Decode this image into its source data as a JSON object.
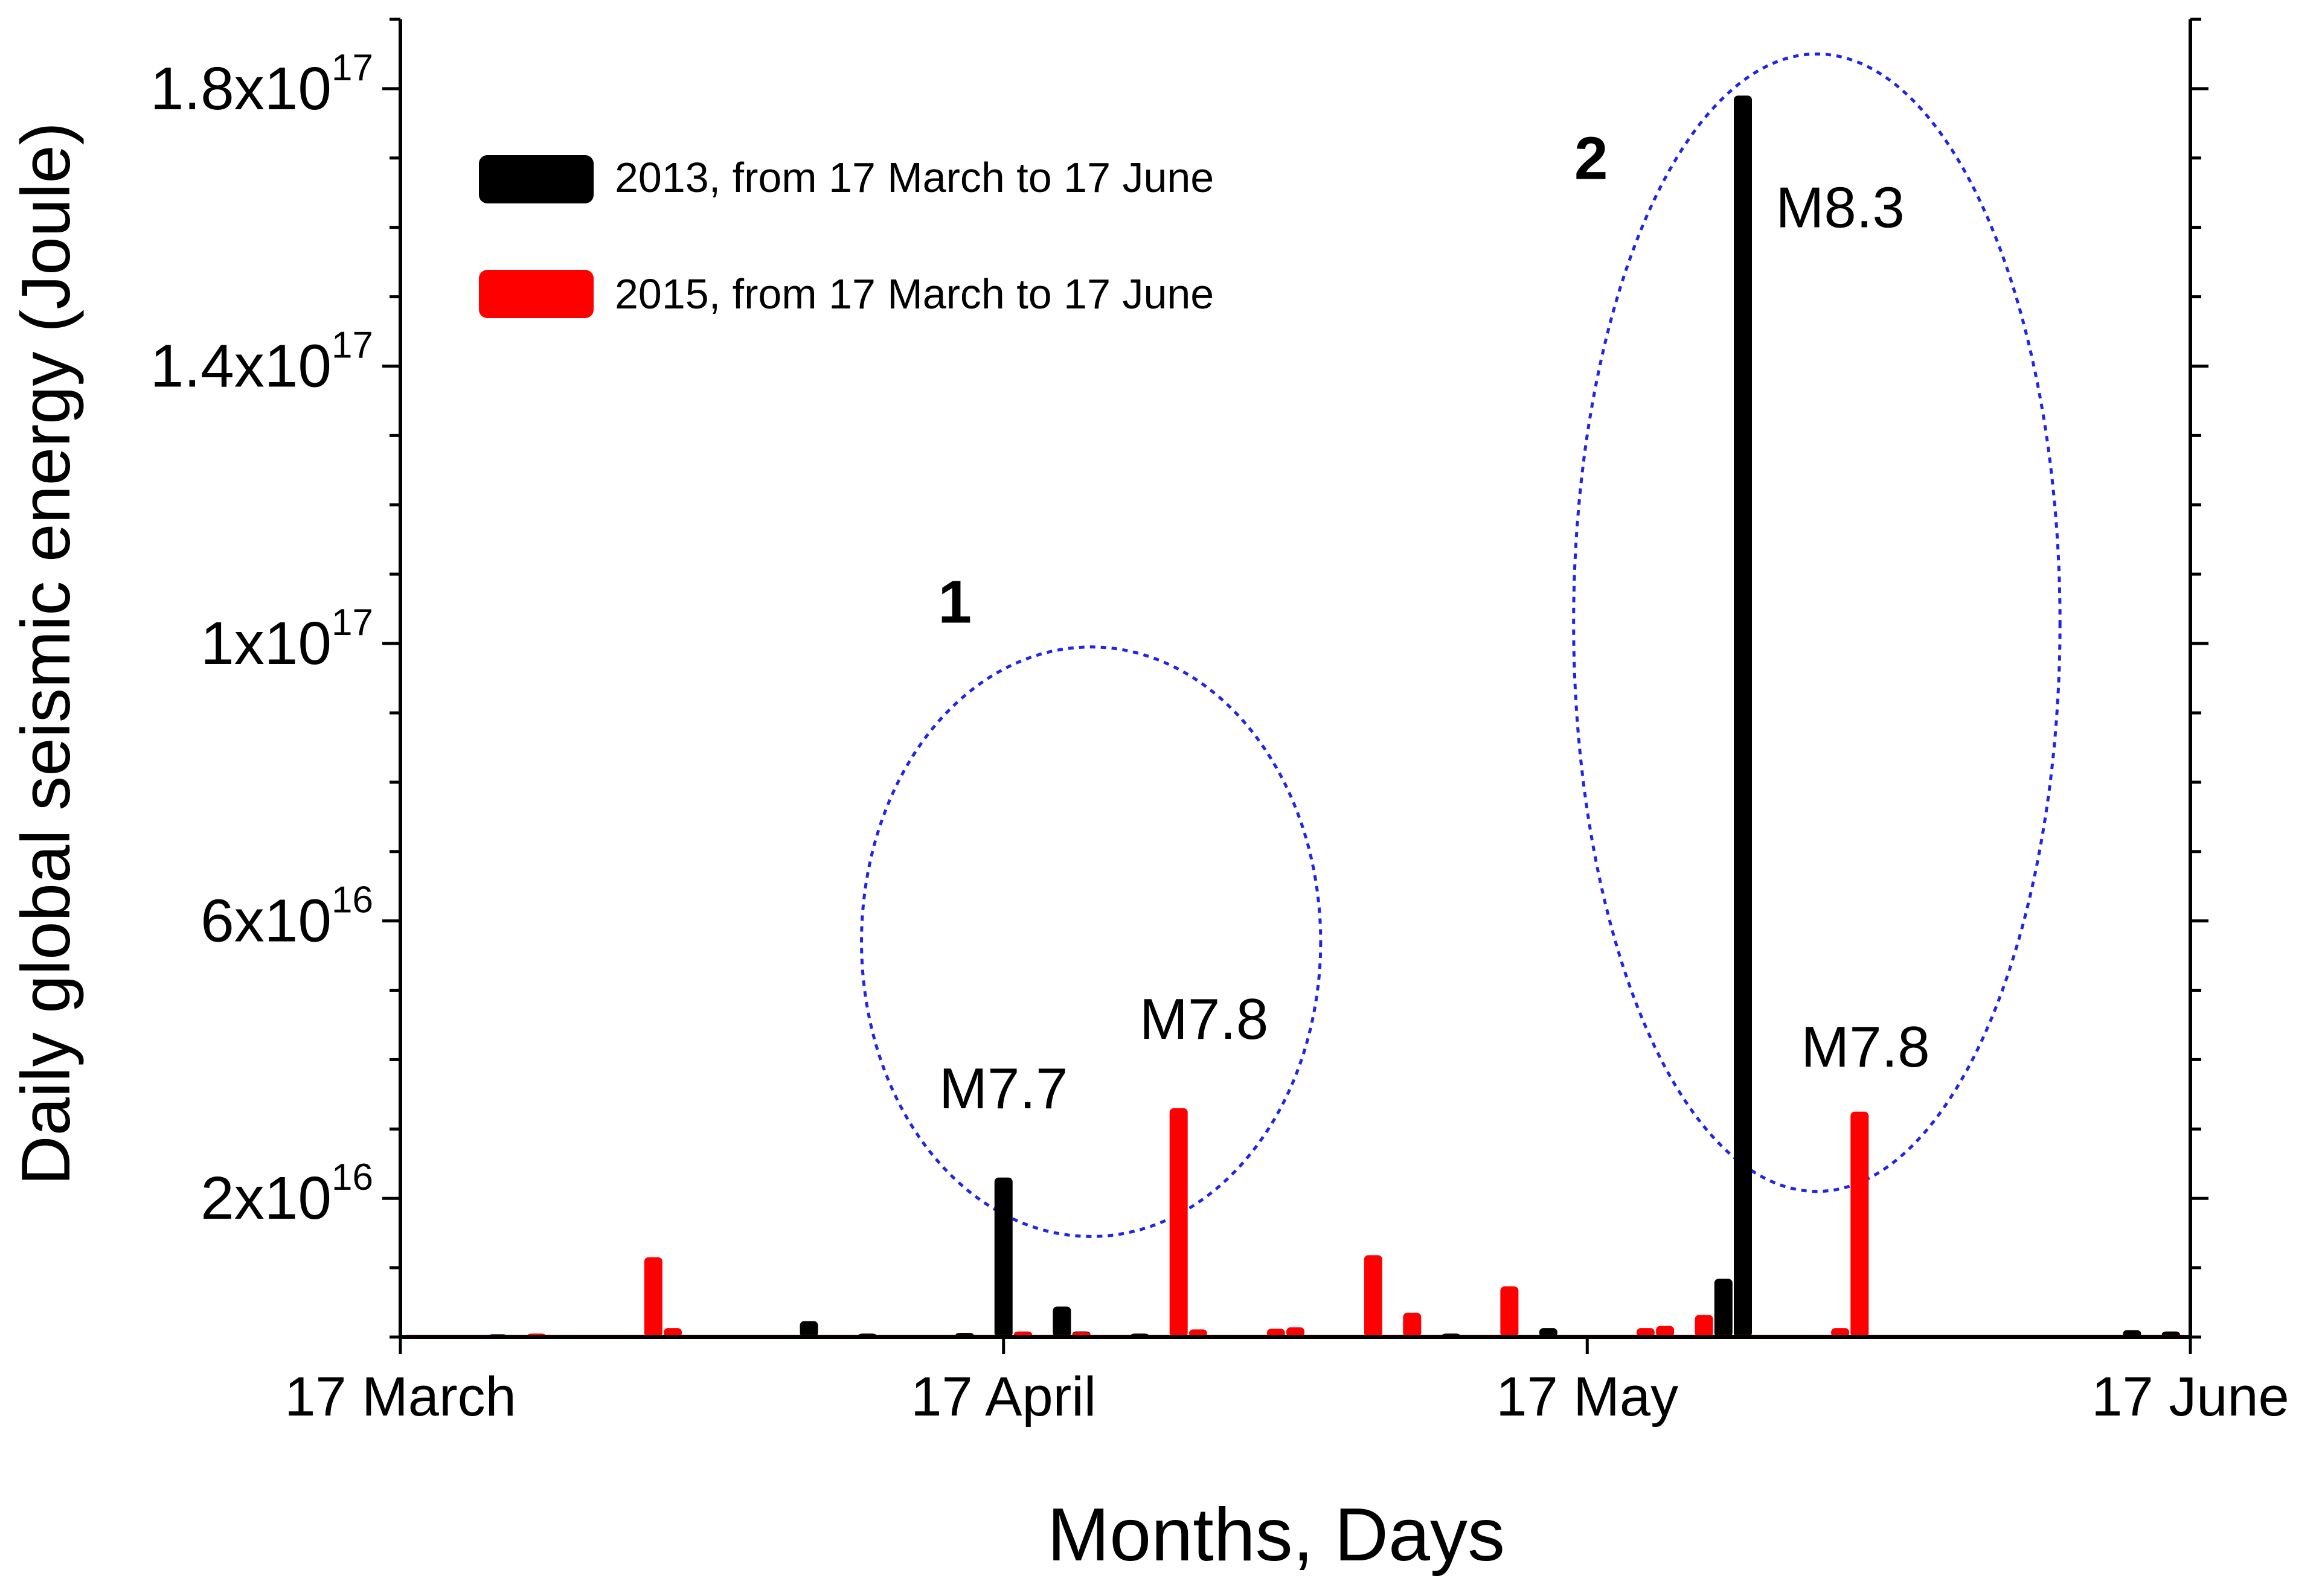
{
  "chart_data": {
    "type": "bar",
    "title": "",
    "xlabel": "Months, Days",
    "ylabel": "Daily global seismic energy (Joule)",
    "x_range_days": [
      0,
      92
    ],
    "ylim": [
      0,
      1.9e+17
    ],
    "x_ticks": [
      {
        "day": 0,
        "label": "17 March"
      },
      {
        "day": 31,
        "label": "17 April"
      },
      {
        "day": 61,
        "label": "17 May"
      },
      {
        "day": 92,
        "label": "17 June"
      }
    ],
    "y_ticks": [
      {
        "value": 2e+16,
        "base": "2x10",
        "exp": "16"
      },
      {
        "value": 6e+16,
        "base": "6x10",
        "exp": "16"
      },
      {
        "value": 1e+17,
        "base": "1x10",
        "exp": "17"
      },
      {
        "value": 1.4e+17,
        "base": "1.4x10",
        "exp": "17"
      },
      {
        "value": 1.8e+17,
        "base": "1.8x10",
        "exp": "17"
      }
    ],
    "baseline_value": 300000000000000.0,
    "series": [
      {
        "name": "2013, from 17 March to 17 June",
        "color": "#000000",
        "points": [
          {
            "day": 5,
            "value": 400000000000000.0
          },
          {
            "day": 8,
            "value": 300000000000000.0
          },
          {
            "day": 21,
            "value": 2300000000000000.0
          },
          {
            "day": 24,
            "value": 500000000000000.0
          },
          {
            "day": 29,
            "value": 600000000000000.0
          },
          {
            "day": 31,
            "value": 2.3e+16
          },
          {
            "day": 34,
            "value": 4400000000000000.0
          },
          {
            "day": 35,
            "value": 800000000000000.0
          },
          {
            "day": 38,
            "value": 500000000000000.0
          },
          {
            "day": 41,
            "value": 400000000000000.0
          },
          {
            "day": 54,
            "value": 500000000000000.0
          },
          {
            "day": 59,
            "value": 1300000000000000.0
          },
          {
            "day": 68,
            "value": 8400000000000000.0
          },
          {
            "day": 69,
            "value": 1.79e+17
          },
          {
            "day": 89,
            "value": 1000000000000000.0
          },
          {
            "day": 91,
            "value": 800000000000000.0
          }
        ]
      },
      {
        "name": "2015, from 17 March to 17 June",
        "color": "#ff0000",
        "points": [
          {
            "day": 7,
            "value": 500000000000000.0
          },
          {
            "day": 13,
            "value": 1.15e+16
          },
          {
            "day": 14,
            "value": 1300000000000000.0
          },
          {
            "day": 32,
            "value": 800000000000000.0
          },
          {
            "day": 35,
            "value": 700000000000000.0
          },
          {
            "day": 40,
            "value": 3.3e+16
          },
          {
            "day": 41,
            "value": 1100000000000000.0
          },
          {
            "day": 45,
            "value": 1200000000000000.0
          },
          {
            "day": 46,
            "value": 1400000000000000.0
          },
          {
            "day": 50,
            "value": 1.18e+16
          },
          {
            "day": 52,
            "value": 3500000000000000.0
          },
          {
            "day": 57,
            "value": 7300000000000000.0
          },
          {
            "day": 64,
            "value": 1300000000000000.0
          },
          {
            "day": 65,
            "value": 1600000000000000.0
          },
          {
            "day": 67,
            "value": 3200000000000000.0
          },
          {
            "day": 74,
            "value": 1300000000000000.0
          },
          {
            "day": 75,
            "value": 3.25e+16
          }
        ]
      }
    ],
    "annotations": [
      {
        "text": "M7.7",
        "day": 31,
        "value": 3.3e+16
      },
      {
        "text": "M7.8",
        "day": 41.3,
        "value": 4.3e+16
      },
      {
        "text": "M8.3",
        "day": 74,
        "value": 1.6e+17
      },
      {
        "text": "M7.8",
        "day": 75.3,
        "value": 3.9e+16
      }
    ],
    "groups": [
      {
        "label": "1",
        "day_center": 35.5,
        "day_radius": 11.8,
        "value_center": 5.7e+16,
        "value_radius": 4.25e+16,
        "label_day": 28.5,
        "label_value": 1.03e+17
      },
      {
        "label": "2",
        "day_center": 72.8,
        "day_radius": 12.5,
        "value_center": 1.03e+17,
        "value_radius": 8.2e+16,
        "label_day": 61.2,
        "label_value": 1.67e+17
      }
    ],
    "legend_position": "top-left",
    "grid": false
  }
}
